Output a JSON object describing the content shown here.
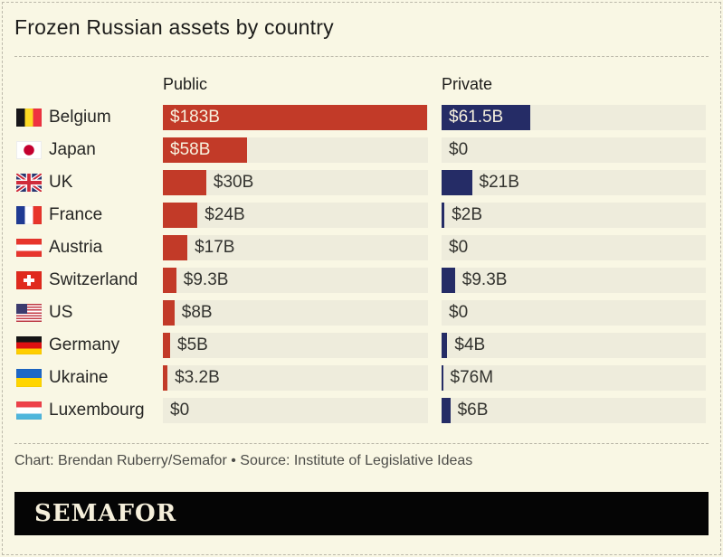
{
  "header": {
    "title": "Frozen Russian assets by country"
  },
  "columns": {
    "public": "Public",
    "private": "Private"
  },
  "footer": {
    "credit": "Chart: Brendan Ruberry/Semafor • Source: Institute of Legislative Ideas",
    "logo": "SEMAFOR"
  },
  "colors": {
    "public_bar": "#c23a28",
    "private_bar": "#252c66",
    "track": "#eeecdc",
    "background": "#f9f7e4"
  },
  "chart_data": {
    "type": "bar",
    "orientation": "horizontal",
    "title": "Frozen Russian assets by country",
    "unit": "USD",
    "legend_position": "column headers",
    "grid": false,
    "axis_max_billions": 183,
    "categories": [
      "Belgium",
      "Japan",
      "UK",
      "France",
      "Austria",
      "Switzerland",
      "US",
      "Germany",
      "Ukraine",
      "Luxembourg"
    ],
    "flags": [
      "belgium",
      "japan",
      "uk",
      "france",
      "austria",
      "switzerland",
      "us",
      "germany",
      "ukraine",
      "luxembourg"
    ],
    "series": [
      {
        "name": "Public",
        "values_billions": [
          183,
          58,
          30,
          24,
          17,
          9.3,
          8,
          5,
          3.2,
          0
        ],
        "labels": [
          "$183B",
          "$58B",
          "$30B",
          "$24B",
          "$17B",
          "$9.3B",
          "$8B",
          "$5B",
          "$3.2B",
          "$0"
        ]
      },
      {
        "name": "Private",
        "values_billions": [
          61.5,
          0,
          21,
          2,
          0,
          9.3,
          0,
          4,
          0.076,
          6
        ],
        "labels": [
          "$61.5B",
          "$0",
          "$21B",
          "$2B",
          "$0",
          "$9.3B",
          "$0",
          "$4B",
          "$76M",
          "$6B"
        ]
      }
    ]
  }
}
